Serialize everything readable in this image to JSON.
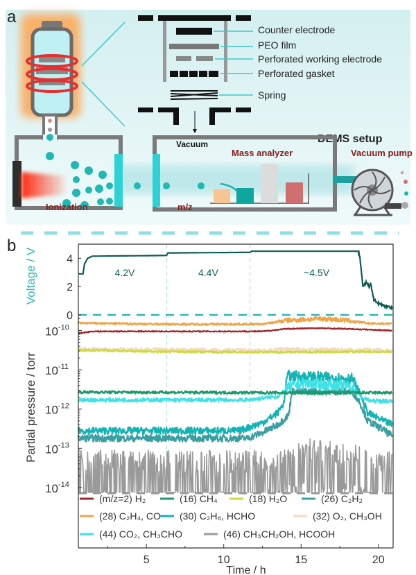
{
  "panel_a": {
    "label": "a",
    "parts": {
      "counter_electrode": "Counter electrode",
      "peo_film": "PEO film",
      "working_electrode": "Perforated working electrode",
      "gasket": "Perforated gasket",
      "spring": "Spring"
    },
    "vacuum": "Vacuum",
    "setup_title": "DEMS setup",
    "ionization": "Ionization",
    "mass_analyzer": "Mass analyzer",
    "mz": "m/z",
    "vacuum_pump": "Vacuum pump"
  },
  "panel_b": {
    "label": "b"
  },
  "colors": {
    "h2": "#a3262b",
    "ch4": "#1a9a68",
    "h2o": "#c9dc3c",
    "c2h2": "#3a9fa2",
    "co": "#f0a447",
    "c2h6": "#14b4b4",
    "o2": "#f6d8bb",
    "co2": "#3ee2e6",
    "m46": "#9a9a9a",
    "voltage": "#0f5c55",
    "teal": "#2bb8b3"
  },
  "chart_data": [
    {
      "type": "line",
      "title": "",
      "xlabel": "Time / h",
      "ylabel": "Voltage / V",
      "xlim": [
        0.6,
        20.95
      ],
      "ylim": [
        0,
        5
      ],
      "yticks": [
        "0",
        "2",
        "4"
      ],
      "ytick_values": [
        0,
        2,
        4
      ],
      "annotations": [
        {
          "text": "4.2V",
          "x": 3.6,
          "y": 3.0
        },
        {
          "text": "4.4V",
          "x": 9.0,
          "y": 3.0
        },
        {
          "text": "~4.5V",
          "x": 16.0,
          "y": 3.0
        }
      ],
      "dividers": [
        6.3,
        11.7
      ],
      "series": [
        {
          "name": "Voltage",
          "x": [
            0.63,
            0.9,
            1.0,
            1.2,
            1.5,
            6.3,
            6.4,
            11.7,
            11.8,
            18.7,
            18.8,
            18.9,
            19.0,
            19.2,
            19.4,
            19.5,
            19.7,
            20.0,
            20.5,
            20.9
          ],
          "y": [
            2.9,
            2.9,
            3.6,
            4.0,
            4.15,
            4.2,
            4.38,
            4.42,
            4.5,
            4.5,
            4.1,
            3.0,
            2.0,
            2.3,
            2.0,
            2.2,
            1.1,
            0.8,
            0.6,
            0.5
          ]
        }
      ]
    },
    {
      "type": "line",
      "xlabel": "Time / h",
      "ylabel": "Partial pressure / torr",
      "yscale": "log",
      "xlim": [
        0.6,
        20.95
      ],
      "ylim": [
        7.2e-15,
        2.5e-10
      ],
      "xticks": [
        "5",
        "10",
        "15",
        "20"
      ],
      "xtick_values": [
        5,
        10,
        15,
        20
      ],
      "yticks": [
        {
          "base": "10",
          "exp": "-10",
          "value": 1e-10
        },
        {
          "base": "10",
          "exp": "-11",
          "value": 1e-11
        },
        {
          "base": "10",
          "exp": "-12",
          "value": 1e-12
        },
        {
          "base": "10",
          "exp": "-13",
          "value": 1e-13
        },
        {
          "base": "10",
          "exp": "-14",
          "value": 1e-14
        }
      ],
      "series": [
        {
          "key": "o2",
          "name": "(32) O₂, CH₃OH",
          "x": [
            0.63,
            12,
            14,
            18,
            20.9
          ],
          "y": [
            3.3e-11,
            3.1e-11,
            3.3e-11,
            3.2e-11,
            3.1e-11
          ]
        },
        {
          "key": "h2o",
          "name": "(18) H₂O",
          "x": [
            0.63,
            6,
            12,
            20.9
          ],
          "y": [
            3.2e-11,
            2.9e-11,
            2.8e-11,
            2.9e-11
          ]
        },
        {
          "key": "m46",
          "name": "(46) CH₃CH₂OH, HCOOH",
          "x": [
            0.63,
            13.5,
            14.3,
            18,
            19,
            20.9
          ],
          "y": [
            3.5e-14,
            3.5e-14,
            7e-14,
            6e-14,
            4e-14,
            3.5e-14
          ]
        },
        {
          "key": "c2h2",
          "name": "(26) C₂H₂",
          "x": [
            0.63,
            11.5,
            12.5,
            13.5,
            14.2,
            14.4,
            18.3,
            18.8,
            19.3,
            20.3,
            20.9
          ],
          "y": [
            1.8e-13,
            1.8e-13,
            2.5e-13,
            4e-13,
            7e-13,
            2.8e-12,
            2.8e-12,
            1.5e-12,
            5e-13,
            3e-13,
            2e-13
          ]
        },
        {
          "key": "c2h6",
          "name": "(30) C₂H₆, HCHO",
          "x": [
            0.63,
            11.0,
            12.5,
            13.5,
            13.9,
            14.1,
            18.3,
            18.8,
            19.3,
            20.3,
            20.9
          ],
          "y": [
            2.8e-13,
            2.8e-13,
            4.5e-13,
            8e-13,
            1.5e-12,
            7e-12,
            6e-12,
            2.5e-12,
            8e-13,
            5e-13,
            4e-13
          ]
        },
        {
          "key": "co2",
          "name": "(44) CO₂, CH₃CHO",
          "x": [
            0.63,
            11.5,
            13.5,
            14.2,
            15,
            18.3,
            18.9,
            19.5,
            20.9
          ],
          "y": [
            1.7e-12,
            1.7e-12,
            2.1e-12,
            3.5e-12,
            4.5e-12,
            3.8e-12,
            2e-12,
            1.6e-12,
            1.6e-12
          ]
        },
        {
          "key": "ch4",
          "name": "(16) CH₄",
          "x": [
            0.63,
            14,
            18.5,
            20.9
          ],
          "y": [
            2.7e-12,
            2.6e-12,
            2.6e-12,
            2.6e-12
          ]
        },
        {
          "key": "co",
          "name": "(28) C₂H₄, CO",
          "x": [
            0.63,
            6,
            12.5,
            14,
            15,
            16.5,
            18,
            19.5,
            20.9
          ],
          "y": [
            1.55e-10,
            1.45e-10,
            1.45e-10,
            1.8e-10,
            1.9e-10,
            2e-10,
            1.8e-10,
            1.5e-10,
            1.5e-10
          ]
        },
        {
          "key": "h2",
          "name": "(m/z=2) H₂",
          "x": [
            0.63,
            1.5,
            12.5,
            14,
            16,
            18,
            20.9
          ],
          "y": [
            8.5e-11,
            9.5e-11,
            9.5e-11,
            1.1e-10,
            1.15e-10,
            1.1e-10,
            1e-10
          ]
        }
      ],
      "legend": {
        "placement": "bottom",
        "rows": [
          [
            {
              "key": "h2",
              "label": "(m/z=2) H₂"
            },
            {
              "key": "ch4",
              "label": "(16) CH₄"
            },
            {
              "key": "h2o",
              "label": "(18) H₂O"
            },
            {
              "key": "c2h2",
              "label": "(26) C₂H₂"
            }
          ],
          [
            {
              "key": "co",
              "label": "(28) C₂H₄, CO"
            },
            {
              "key": "c2h6",
              "label": "(30) C₂H₆, HCHO"
            },
            {
              "key": "o2",
              "label": "(32) O₂, CH₃OH"
            }
          ],
          [
            {
              "key": "co2",
              "label": "(44) CO₂, CH₃CHO"
            },
            {
              "key": "m46",
              "label": "(46) CH₃CH₂OH, HCOOH"
            }
          ]
        ]
      }
    }
  ]
}
